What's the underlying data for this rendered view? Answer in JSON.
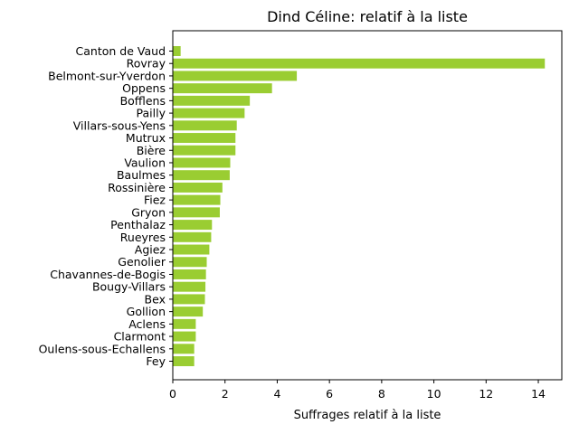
{
  "chart_data": {
    "type": "bar",
    "orientation": "horizontal",
    "title": "Dind Céline: relatif à la liste",
    "xlabel": "Suffrages relatif à la liste",
    "ylabel": "",
    "xlim": [
      0,
      14.9
    ],
    "xticks": [
      0,
      2,
      4,
      6,
      8,
      10,
      12,
      14
    ],
    "grid": false,
    "legend": "none",
    "bar_color": "#9acd32",
    "categories": [
      "Canton de Vaud",
      "Rovray",
      "Belmont-sur-Yverdon",
      "Oppens",
      "Bofflens",
      "Pailly",
      "Villars-sous-Yens",
      "Mutrux",
      "Bière",
      "Vaulion",
      "Baulmes",
      "Rossinière",
      "Fiez",
      "Gryon",
      "Penthalaz",
      "Rueyres",
      "Agiez",
      "Genolier",
      "Chavannes-de-Bogis",
      "Bougy-Villars",
      "Bex",
      "Gollion",
      "Aclens",
      "Clarmont",
      "Oulens-sous-Echallens",
      "Fey"
    ],
    "values": [
      0.3,
      14.25,
      4.75,
      3.8,
      2.95,
      2.75,
      2.45,
      2.4,
      2.4,
      2.2,
      2.18,
      1.9,
      1.82,
      1.8,
      1.5,
      1.47,
      1.4,
      1.3,
      1.27,
      1.25,
      1.23,
      1.15,
      0.88,
      0.88,
      0.82,
      0.82
    ]
  }
}
